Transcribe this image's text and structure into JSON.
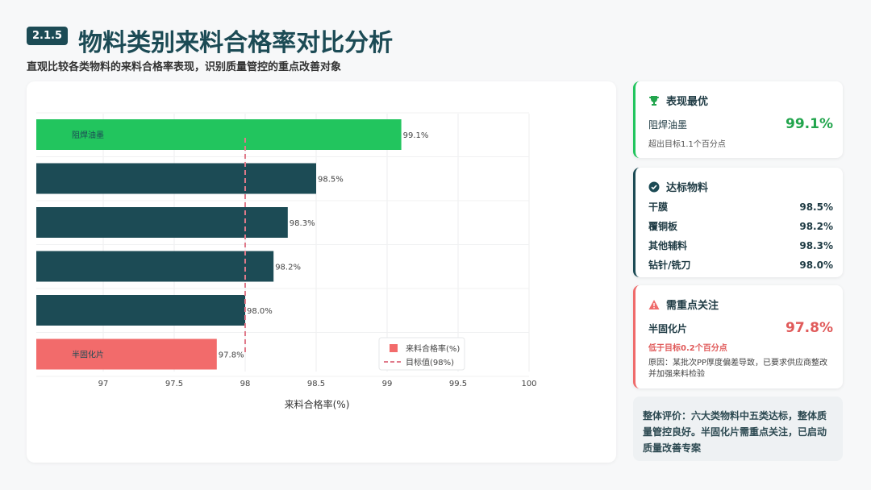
{
  "header": {
    "badge": "2.1.5",
    "title": "物料类别来料合格率对比分析",
    "subtitle": "直观比较各类物料的来料合格率表现，识别质量管控的重点改善对象"
  },
  "colors": {
    "best": "#22c55e",
    "normal": "#1c4b55",
    "warn": "#f26b6b",
    "target": "#e07a8a"
  },
  "chart_data": {
    "type": "bar",
    "orientation": "horizontal",
    "categories": [
      "阻焊油墨",
      "",
      "",
      "",
      "",
      "半固化片"
    ],
    "values": [
      99.1,
      98.5,
      98.3,
      98.2,
      98.0,
      97.8
    ],
    "value_labels": [
      "99.1%",
      "98.5%",
      "98.3%",
      "98.2%",
      "98.0%",
      "97.8%"
    ],
    "bar_colors": [
      "#22c55e",
      "#1c4b55",
      "#1c4b55",
      "#1c4b55",
      "#1c4b55",
      "#f26b6b"
    ],
    "xlim": [
      97,
      100
    ],
    "xticks": [
      97,
      97.5,
      98,
      98.5,
      99,
      99.5,
      100
    ],
    "xtick_labels": [
      "97",
      "97.5",
      "98",
      "98.5",
      "99",
      "99.5",
      "100"
    ],
    "xlabel": "来料合格率(%)",
    "target": 98,
    "legend": [
      "来料合格率(%)",
      "目标值(98%)"
    ],
    "legend_position": "bottom-right",
    "grid": true
  },
  "best": {
    "title": "表现最优",
    "name": "阻焊油墨",
    "value": "99.1%",
    "note": "超出目标1.1个百分点"
  },
  "ok": {
    "title": "达标物料",
    "items": [
      {
        "name": "干膜",
        "value": "98.5%"
      },
      {
        "name": "覆铜板",
        "value": "98.2%"
      },
      {
        "name": "其他辅料",
        "value": "98.3%"
      },
      {
        "name": "钻针/铣刀",
        "value": "98.0%"
      }
    ]
  },
  "warn": {
    "title": "需重点关注",
    "name": "半固化片",
    "value": "97.8%",
    "gap": "低于目标0.2个百分点",
    "reason": "原因：某批次PP厚度偏差导致，已要求供应商整改并加强来料检验"
  },
  "summary": "整体评价：六大类物料中五类达标，整体质量管控良好。半固化片需重点关注，已启动质量改善专案"
}
